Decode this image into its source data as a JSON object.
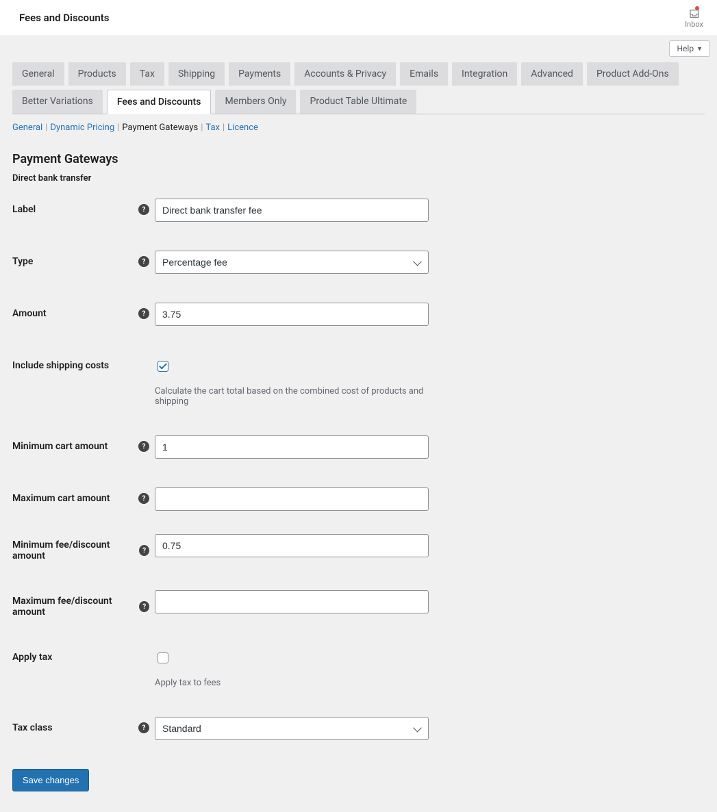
{
  "topbar": {
    "title": "Fees and Discounts",
    "inbox_label": "Inbox",
    "help_label": "Help"
  },
  "tabs": [
    {
      "label": "General",
      "active": false
    },
    {
      "label": "Products",
      "active": false
    },
    {
      "label": "Tax",
      "active": false
    },
    {
      "label": "Shipping",
      "active": false
    },
    {
      "label": "Payments",
      "active": false
    },
    {
      "label": "Accounts & Privacy",
      "active": false
    },
    {
      "label": "Emails",
      "active": false
    },
    {
      "label": "Integration",
      "active": false
    },
    {
      "label": "Advanced",
      "active": false
    },
    {
      "label": "Product Add-Ons",
      "active": false
    },
    {
      "label": "Better Variations",
      "active": false
    },
    {
      "label": "Fees and Discounts",
      "active": true
    },
    {
      "label": "Members Only",
      "active": false
    },
    {
      "label": "Product Table Ultimate",
      "active": false
    }
  ],
  "subnav": [
    {
      "label": "General",
      "current": false
    },
    {
      "label": "Dynamic Pricing",
      "current": false
    },
    {
      "label": "Payment Gateways",
      "current": true
    },
    {
      "label": "Tax",
      "current": false
    },
    {
      "label": "Licence",
      "current": false
    }
  ],
  "section": {
    "title": "Payment Gateways",
    "subheading": "Direct bank transfer"
  },
  "fields": {
    "label": {
      "label": "Label",
      "value": "Direct bank transfer fee"
    },
    "type": {
      "label": "Type",
      "value": "Percentage fee"
    },
    "amount": {
      "label": "Amount",
      "value": "3.75"
    },
    "include_shipping": {
      "label": "Include shipping costs",
      "checked": true,
      "desc": "Calculate the cart total based on the combined cost of products and shipping"
    },
    "min_cart": {
      "label": "Minimum cart amount",
      "value": "1"
    },
    "max_cart": {
      "label": "Maximum cart amount",
      "value": ""
    },
    "min_fee": {
      "label": "Minimum fee/discount amount",
      "value": "0.75"
    },
    "max_fee": {
      "label": "Maximum fee/discount amount",
      "value": ""
    },
    "apply_tax": {
      "label": "Apply tax",
      "checked": false,
      "desc": "Apply tax to fees"
    },
    "tax_class": {
      "label": "Tax class",
      "value": "Standard"
    }
  },
  "save_button": "Save changes"
}
